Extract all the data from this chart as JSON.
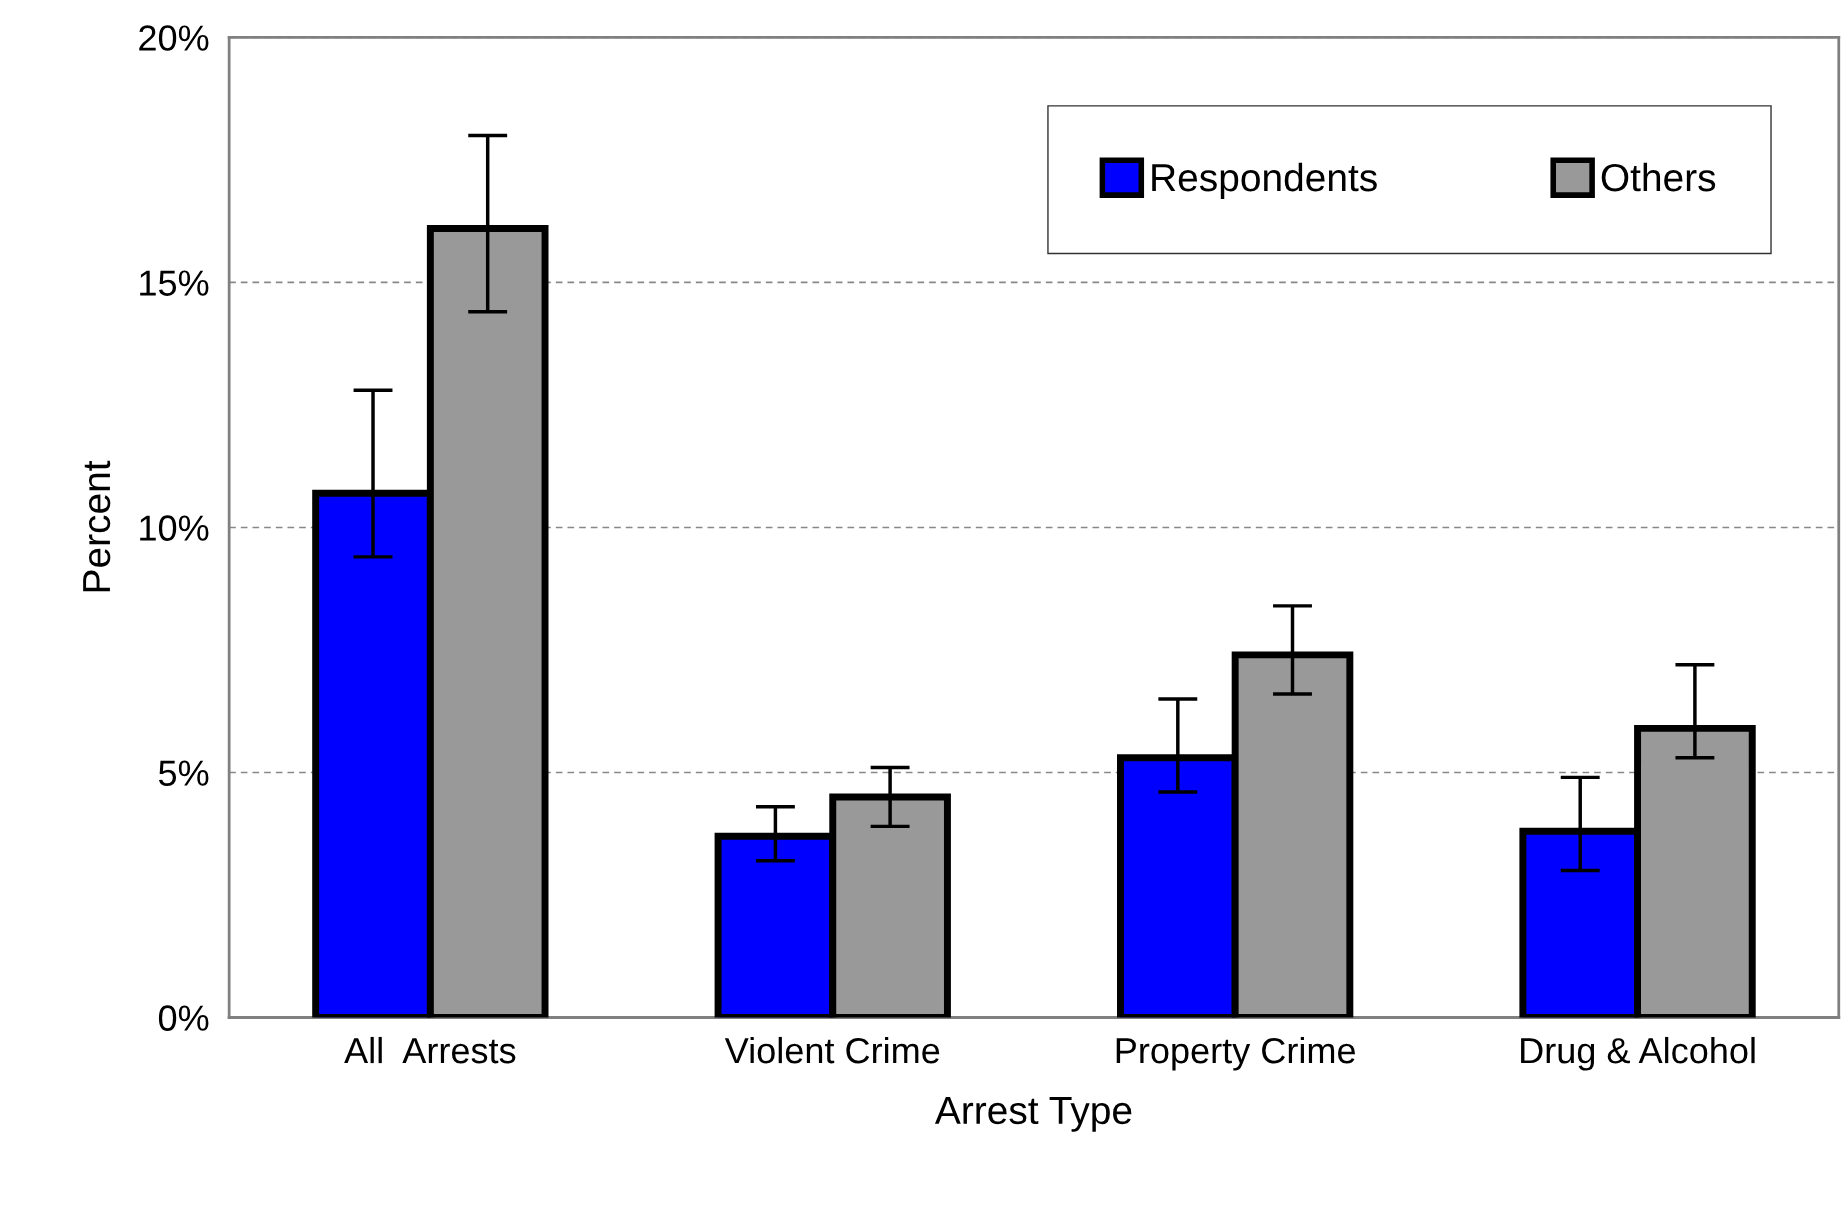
{
  "chart_data": {
    "type": "bar",
    "xlabel": "Arrest Type",
    "ylabel": "Percent",
    "categories": [
      "All  Arrests",
      "Violent Crime",
      "Property Crime",
      "Drug & Alcohol"
    ],
    "series": [
      {
        "name": "Respondents",
        "color": "#0000ff",
        "values": [
          10.7,
          3.7,
          5.3,
          3.8
        ],
        "errors": [
          [
            9.4,
            12.8
          ],
          [
            3.2,
            4.3
          ],
          [
            4.6,
            6.5
          ],
          [
            3.0,
            4.9
          ]
        ]
      },
      {
        "name": "Others",
        "color": "#999999",
        "values": [
          16.1,
          4.5,
          7.4,
          5.9
        ],
        "errors": [
          [
            14.4,
            18.0
          ],
          [
            3.9,
            5.1
          ],
          [
            6.6,
            8.4
          ],
          [
            5.3,
            7.2
          ]
        ]
      }
    ],
    "ylim": [
      0,
      20
    ],
    "yticks": [
      {
        "value": 0,
        "label": "0%"
      },
      {
        "value": 5,
        "label": "5%"
      },
      {
        "value": 10,
        "label": "10%"
      },
      {
        "value": 15,
        "label": "15%"
      },
      {
        "value": 20,
        "label": "20%"
      }
    ],
    "grid": "y",
    "legend": "top right"
  }
}
